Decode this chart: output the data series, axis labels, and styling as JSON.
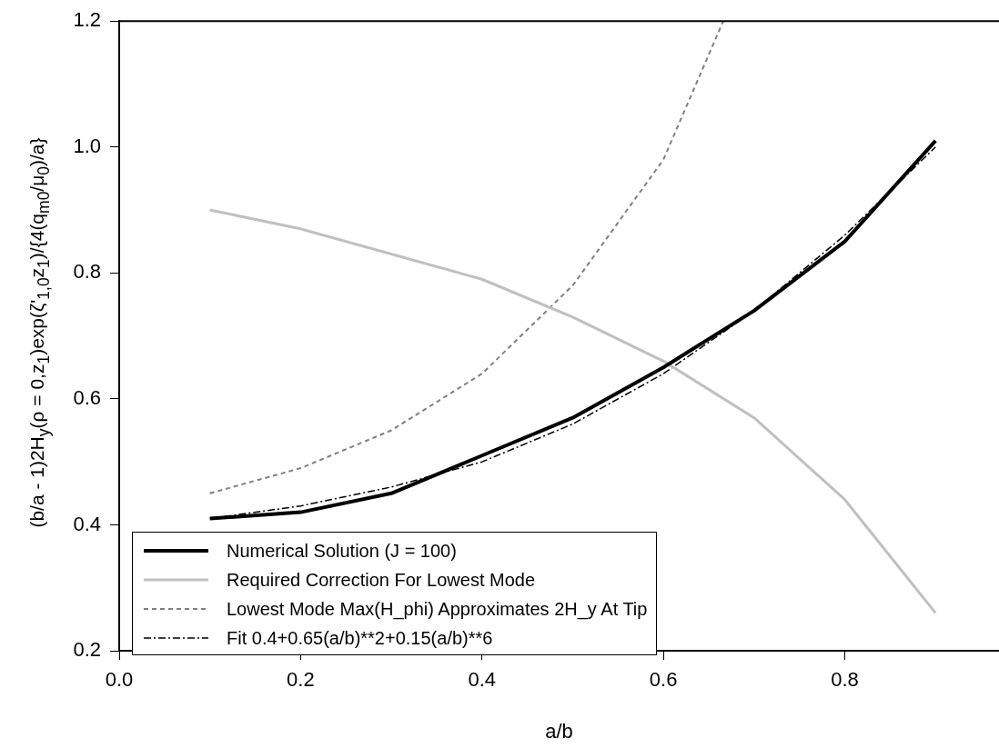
{
  "chart_data": {
    "type": "line",
    "xlabel": "a/b",
    "ylabel": "(b/a - 1)2H$_{y}$(ρ = 0,z$_{1}$)exp(ζ'$_{1,0}$z$_{1}$)/{4(q$_{m0}$/μ$_{0}$)/a}",
    "xlim": [
      0,
      0.97
    ],
    "ylim": [
      0.2,
      1.2
    ],
    "xticks": [
      {
        "value": 0,
        "label": "0.0"
      },
      0.2,
      0.4,
      0.6,
      0.8
    ],
    "yticks": [
      0.2,
      0.4,
      0.6,
      0.8,
      {
        "value": 1,
        "label": "1.0"
      },
      1.2
    ],
    "grid": false,
    "legend": "bottom left",
    "marker": "none",
    "series": [
      {
        "name": "Numerical Solution (J = 100)",
        "color": "#000000",
        "line_style": "solid",
        "x": [
          0.1,
          0.2,
          0.3,
          0.4,
          0.5,
          0.6,
          0.7,
          0.8,
          0.9
        ],
        "values": [
          0.41,
          0.42,
          0.45,
          0.51,
          0.57,
          0.65,
          0.74,
          0.85,
          1.01
        ]
      },
      {
        "name": "Required Correction For Lowest Mode",
        "color": "#c0c0c0",
        "line_style": "solid",
        "x": [
          0.1,
          0.2,
          0.3,
          0.4,
          0.5,
          0.6,
          0.7,
          0.8,
          0.9
        ],
        "values": [
          0.9,
          0.87,
          0.83,
          0.79,
          0.73,
          0.66,
          0.57,
          0.44,
          0.26
        ]
      },
      {
        "name": "Lowest Mode Max(H_phi) Approximates 2H_y At Tip",
        "color": "#808080",
        "line_style": "dotted",
        "x": [
          0.1,
          0.2,
          0.3,
          0.4,
          0.5,
          0.6,
          0.666
        ],
        "values": [
          0.45,
          0.49,
          0.55,
          0.64,
          0.78,
          0.98,
          1.2
        ]
      },
      {
        "name": "Fit 0.4+0.65(a/b)**2+0.15(a/b)**6",
        "color": "#000000",
        "line_style": "dashed",
        "x": [
          0.1,
          0.2,
          0.3,
          0.4,
          0.5,
          0.6,
          0.7,
          0.8,
          0.9
        ],
        "values": [
          0.41,
          0.43,
          0.46,
          0.5,
          0.56,
          0.64,
          0.74,
          0.86,
          1.0
        ]
      }
    ]
  }
}
